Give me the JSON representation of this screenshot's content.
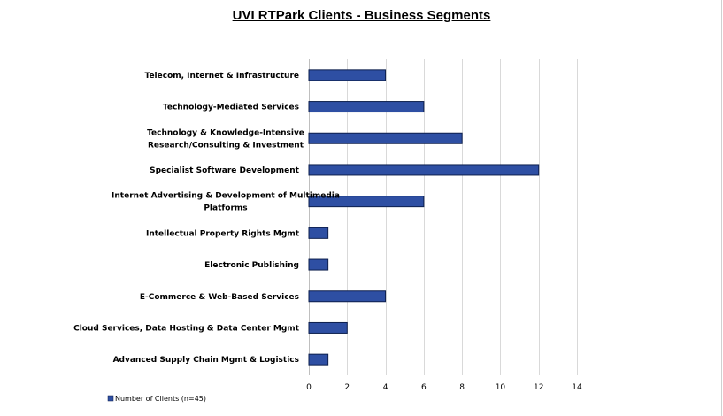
{
  "chart_data": {
    "type": "bar",
    "orientation": "horizontal",
    "title": "UVI RTPark Clients - Business Segments",
    "categories": [
      [
        "Telecom, Internet & Infrastructure"
      ],
      [
        "Technology-Mediated Services"
      ],
      [
        "Technology & Knowledge-Intensive",
        "Research/Consulting & Investment"
      ],
      [
        "Specialist Software Development"
      ],
      [
        "Internet Advertising & Development of Multimedia",
        "Platforms"
      ],
      [
        "Intellectual Property Rights Mgmt"
      ],
      [
        "Electronic Publishing"
      ],
      [
        "E-Commerce & Web-Based Services"
      ],
      [
        "Cloud Services, Data Hosting & Data Center Mgmt"
      ],
      [
        "Advanced Supply Chain Mgmt & Logistics"
      ]
    ],
    "series": [
      {
        "name": "Number of Clients (n=45)",
        "values": [
          4,
          6,
          8,
          12,
          6,
          1,
          1,
          4,
          2,
          1
        ]
      }
    ],
    "xlim": [
      0,
      14
    ],
    "xticks": [
      "0",
      "2",
      "4",
      "6",
      "8",
      "10",
      "12",
      "14"
    ],
    "xlabel": "",
    "ylabel": "",
    "grid": true,
    "legend_position": "bottom-left",
    "colors": {
      "bar_fill": "#2e4fa3",
      "bar_stroke": "#0d1f4d",
      "grid": "#d9d9d9"
    }
  }
}
